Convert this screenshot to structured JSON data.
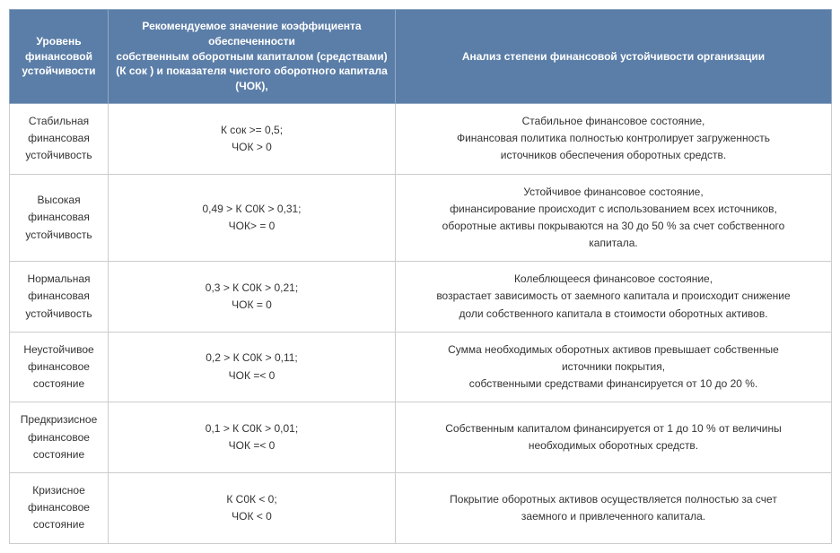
{
  "table": {
    "header_bg": "#5b7ea8",
    "header_fg": "#ffffff",
    "border_color": "#cccccc",
    "columns": [
      "Уровень\nфинансовой\nустойчивости",
      "Рекомендуемое значение коэффициента обеспеченности\nсобственным оборотным капиталом (средствами)\n(К сок ) и показателя чистого оборотного капитала (ЧОК),",
      "Анализ степени финансовой устойчивости организации"
    ],
    "rows": [
      {
        "level": "Стабильная\nфинансовая\nустойчивость",
        "coef": "К сок >= 0,5;\nЧОК > 0",
        "analysis": "Стабильное финансовое состояние,\nФинансовая политика полностью контролирует загруженность\nисточников обеспечения оборотных средств."
      },
      {
        "level": "Высокая\nфинансовая\nустойчивость",
        "coef": "0,49 > К С0К > 0,31;\nЧОК> = 0",
        "analysis": "Устойчивое финансовое состояние,\nфинансирование происходит с использованием всех источников,\nоборотные активы покрываются на  30 до 50 % за счет собственного\nкапитала."
      },
      {
        "level": "Нормальная\nфинансовая\nустойчивость",
        "coef": "0,3 > К С0К > 0,21;\nЧОК = 0",
        "analysis": "Колеблющееся финансовое состояние,\nвозрастает зависимость от заемного капитала и происходит снижение\nдоли собственного капитала в стоимости оборотных активов."
      },
      {
        "level": "Неустойчивое\nфинансовое\nсостояние",
        "coef": "0,2 > К С0К > 0,11;\nЧОК =< 0",
        "analysis": "Сумма необходимых оборотных активов превышает собственные\nисточники покрытия,\nсобственными средствами финансируется от 10 до 20 %."
      },
      {
        "level": "Предкризисное\nфинансовое\nсостояние",
        "coef": "0,1 > К С0К > 0,01;\nЧОК =< 0",
        "analysis": "Собственным капиталом финансируется от 1 до 10 % от величины\nнеобходимых оборотных средств."
      },
      {
        "level": "Кризисное\nфинансовое\nсостояние",
        "coef": "К С0К < 0;\nЧОК < 0",
        "analysis": "Покрытие оборотных активов осуществляется полностью за счет\nзаемного и привлеченного капитала."
      }
    ]
  }
}
